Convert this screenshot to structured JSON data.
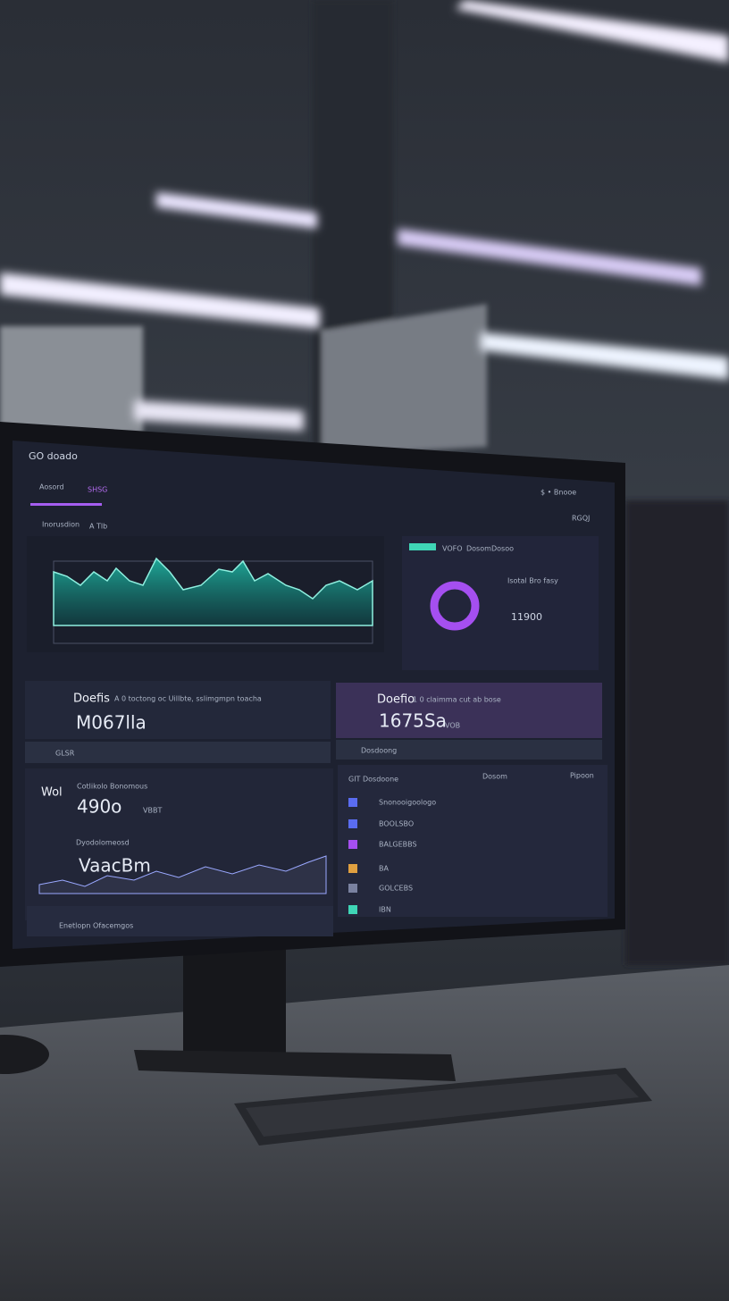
{
  "header": {
    "title": "GO doado",
    "tabs": [
      "Aosord",
      "SHSG"
    ],
    "sub": [
      "Inorusdion",
      "A Tlb"
    ],
    "right": "$ • Bnooe",
    "badge": "RGQJ"
  },
  "donut_panel": {
    "tabs": [
      "VOFO",
      "Dosom",
      "Dosoo"
    ],
    "label": "Isotal Bro fasy",
    "value": "11900"
  },
  "cards": [
    {
      "title": "Doefis",
      "subtitle": "A 0 toctong oc Uillbte, sslimgmpn toacha",
      "value": "M067lla",
      "footer": "GLSR"
    },
    {
      "title": "Doefio",
      "subtitle": "1 0 claimma cut ab bose",
      "value": "1675Sa",
      "tag": "VOB",
      "footer": "Dosdoong"
    },
    {
      "title": "Wol",
      "subtitle": "Cotlikolo Bonomous",
      "value": "490o",
      "tag": "VBBT",
      "chart_title": "Dyodolomeosd",
      "chart_value": "VaacBm"
    }
  ],
  "table": {
    "title": "GIT Dosdoone",
    "columns": [
      "Dosom",
      "Pipoon"
    ],
    "rows": [
      "Snonooigoologo",
      "BOOLSBO",
      "BALGEBBS",
      "BA",
      "GOLCEBS",
      "IBN"
    ]
  },
  "footer": "Enetlopn Ofacemgos"
}
